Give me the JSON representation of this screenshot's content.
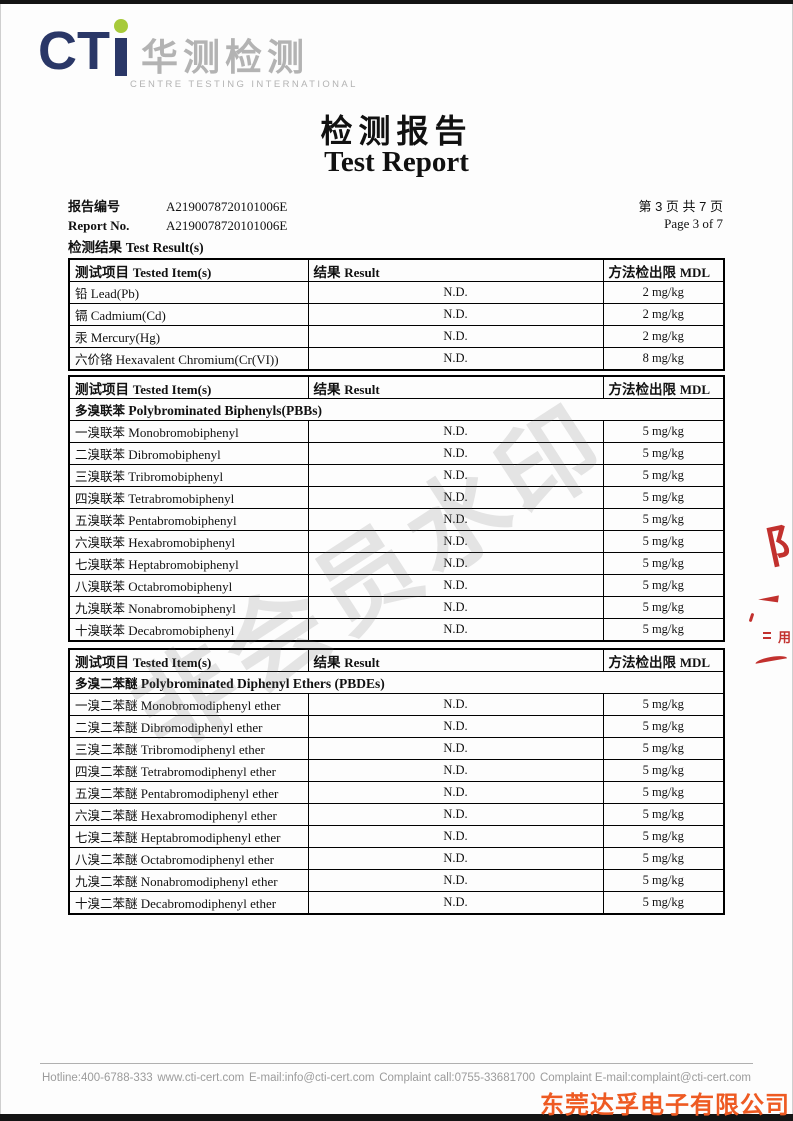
{
  "colors": {
    "navy": "#2a3767",
    "green": "#a7ca3a",
    "stamp_red": "#c2312e",
    "company_red": "#ee5a22"
  },
  "logo": {
    "cti": "CT",
    "chinese": "华测检测",
    "subtitle": "CENTRE TESTING INTERNATIONAL"
  },
  "title": {
    "cn": "检测报告",
    "en": "Test Report"
  },
  "report": {
    "label_cn": "报告编号",
    "label_en": "Report No.",
    "number_line1": "A2190078720101006E",
    "number_line2": "A2190078720101006E",
    "page_cn": "第 3 页  共 7 页",
    "page_en": "Page 3 of 7",
    "result_label_cn": "检测结果",
    "result_label_en": "Test Result(s)"
  },
  "table_headers": {
    "item_cn": "测试项目",
    "item_en": "Tested Item(s)",
    "result_cn": "结果",
    "result_en": "Result",
    "mdl_cn": "方法检出限",
    "mdl_en": "MDL"
  },
  "tables": [
    {
      "section": null,
      "rows": [
        {
          "cn": "铅",
          "en": "Lead(Pb)",
          "result": "N.D.",
          "mdl": "2 mg/kg"
        },
        {
          "cn": "镉",
          "en": "Cadmium(Cd)",
          "result": "N.D.",
          "mdl": "2 mg/kg"
        },
        {
          "cn": "汞",
          "en": "Mercury(Hg)",
          "result": "N.D.",
          "mdl": "2 mg/kg"
        },
        {
          "cn": "六价铬",
          "en": "Hexavalent Chromium(Cr(VI))",
          "result": "N.D.",
          "mdl": "8 mg/kg"
        }
      ]
    },
    {
      "section": {
        "cn": "多溴联苯",
        "en": "Polybrominated Biphenyls(PBBs)"
      },
      "rows": [
        {
          "cn": "一溴联苯",
          "en": "Monobromobiphenyl",
          "result": "N.D.",
          "mdl": "5 mg/kg"
        },
        {
          "cn": "二溴联苯",
          "en": "Dibromobiphenyl",
          "result": "N.D.",
          "mdl": "5 mg/kg"
        },
        {
          "cn": "三溴联苯",
          "en": "Tribromobiphenyl",
          "result": "N.D.",
          "mdl": "5 mg/kg"
        },
        {
          "cn": "四溴联苯",
          "en": "Tetrabromobiphenyl",
          "result": "N.D.",
          "mdl": "5 mg/kg"
        },
        {
          "cn": "五溴联苯",
          "en": "Pentabromobiphenyl",
          "result": "N.D.",
          "mdl": "5 mg/kg"
        },
        {
          "cn": "六溴联苯",
          "en": "Hexabromobiphenyl",
          "result": "N.D.",
          "mdl": "5 mg/kg"
        },
        {
          "cn": "七溴联苯",
          "en": "Heptabromobiphenyl",
          "result": "N.D.",
          "mdl": "5 mg/kg"
        },
        {
          "cn": "八溴联苯",
          "en": "Octabromobiphenyl",
          "result": "N.D.",
          "mdl": "5 mg/kg"
        },
        {
          "cn": "九溴联苯",
          "en": "Nonabromobiphenyl",
          "result": "N.D.",
          "mdl": "5 mg/kg"
        },
        {
          "cn": "十溴联苯",
          "en": "Decabromobiphenyl",
          "result": "N.D.",
          "mdl": "5 mg/kg"
        }
      ]
    },
    {
      "section": {
        "cn": "多溴二苯醚",
        "en": "Polybrominated Diphenyl Ethers (PBDEs)"
      },
      "rows": [
        {
          "cn": "一溴二苯醚",
          "en": "Monobromodiphenyl ether",
          "result": "N.D.",
          "mdl": "5 mg/kg"
        },
        {
          "cn": "二溴二苯醚",
          "en": "Dibromodiphenyl ether",
          "result": "N.D.",
          "mdl": "5 mg/kg"
        },
        {
          "cn": "三溴二苯醚",
          "en": "Tribromodiphenyl ether",
          "result": "N.D.",
          "mdl": "5 mg/kg"
        },
        {
          "cn": "四溴二苯醚",
          "en": "Tetrabromodiphenyl ether",
          "result": "N.D.",
          "mdl": "5 mg/kg"
        },
        {
          "cn": "五溴二苯醚",
          "en": "Pentabromodiphenyl ether",
          "result": "N.D.",
          "mdl": "5 mg/kg"
        },
        {
          "cn": "六溴二苯醚",
          "en": "Hexabromodiphenyl ether",
          "result": "N.D.",
          "mdl": "5 mg/kg"
        },
        {
          "cn": "七溴二苯醚",
          "en": "Heptabromodiphenyl ether",
          "result": "N.D.",
          "mdl": "5 mg/kg"
        },
        {
          "cn": "八溴二苯醚",
          "en": "Octabromodiphenyl ether",
          "result": "N.D.",
          "mdl": "5 mg/kg"
        },
        {
          "cn": "九溴二苯醚",
          "en": "Nonabromodiphenyl ether",
          "result": "N.D.",
          "mdl": "5 mg/kg"
        },
        {
          "cn": "十溴二苯醚",
          "en": "Decabromodiphenyl ether",
          "result": "N.D.",
          "mdl": "5 mg/kg"
        }
      ]
    }
  ],
  "watermark": "非会员水印",
  "stamp": {
    "partial_char": "阝",
    "partial_text": "用"
  },
  "footer": {
    "items": [
      "Hotline:400-6788-333",
      "www.cti-cert.com",
      "E-mail:info@cti-cert.com",
      "Complaint call:0755-33681700",
      "Complaint E-mail:complaint@cti-cert.com"
    ],
    "company": "东莞达孚电子有限公司"
  }
}
